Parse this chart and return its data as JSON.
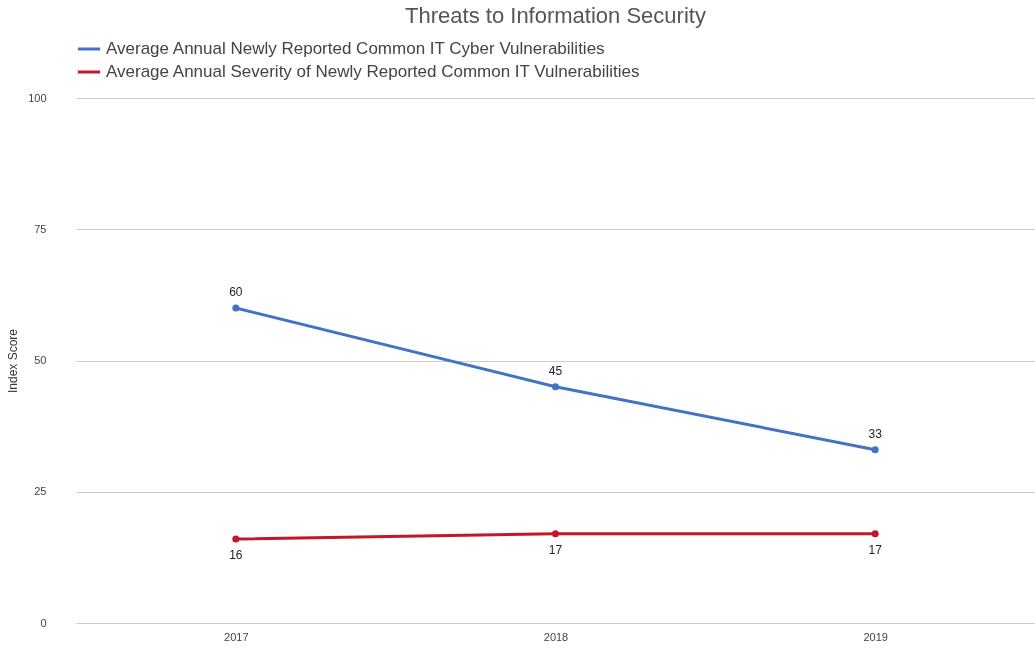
{
  "chart_data": {
    "type": "line",
    "title": "Threats to Information Security",
    "ylabel": "Index Score",
    "categories": [
      "2017",
      "2018",
      "2019"
    ],
    "series": [
      {
        "name": "Average Annual Newly Reported Common IT Cyber Vulnerabilities",
        "color": "#4472c4",
        "values": [
          60,
          45,
          33
        ]
      },
      {
        "name": "Average Annual Severity of Newly Reported Common IT Vulnerabilities",
        "color": "#c0182a",
        "values": [
          16,
          17,
          17
        ]
      }
    ],
    "ylim": [
      0,
      100
    ],
    "yticks": [
      0,
      25,
      50,
      75,
      100
    ],
    "grid": "y",
    "legend": "top",
    "marker": "circle",
    "line_style": "solid",
    "data_labels": true
  }
}
